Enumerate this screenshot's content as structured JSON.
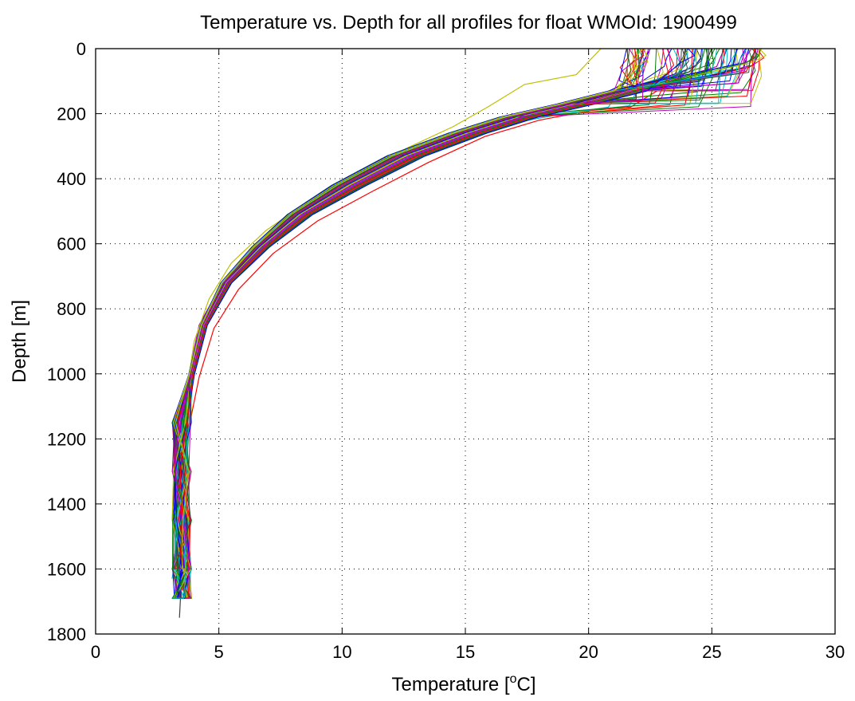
{
  "chart_data": {
    "type": "line",
    "title": "Temperature vs. Depth for all profiles for float WMOId: 1900499",
    "xlabel": "Temperature [",
    "xlabel_sup": "o",
    "xlabel_end": "C]",
    "ylabel": "Depth [m]",
    "xlim": [
      0,
      30
    ],
    "ylim": [
      0,
      1800
    ],
    "y_reversed": true,
    "grid": true,
    "grid_style": "dotted",
    "xticks": [
      "0",
      "5",
      "10",
      "15",
      "20",
      "25",
      "30"
    ],
    "yticks": [
      "0",
      "200",
      "400",
      "600",
      "800",
      "1000",
      "1200",
      "1400",
      "1600",
      "1800"
    ],
    "series_colors": [
      "#0000ff",
      "#008000",
      "#ff0000",
      "#00bfbf",
      "#bf00bf",
      "#bfbf00",
      "#404040"
    ],
    "note_series": "many profiles; representative envelope of profiles",
    "series": [
      {
        "color": "#0000ff",
        "x": [
          26.5,
          26.3,
          24.0,
          21.6,
          19.5,
          17.2,
          15.1,
          12.6,
          10.3,
          8.3,
          6.7,
          5.3,
          4.4,
          3.9,
          3.6,
          3.5,
          3.4,
          3.3,
          3.2
        ],
        "y": [
          0,
          60,
          100,
          130,
          170,
          210,
          260,
          330,
          420,
          510,
          610,
          720,
          850,
          1000,
          1150,
          1300,
          1450,
          1600,
          1690
        ]
      },
      {
        "color": "#008000",
        "x": [
          27.0,
          26.7,
          24.5,
          22.0,
          19.8,
          17.5,
          15.3,
          12.8,
          10.5,
          8.4,
          6.8,
          5.4,
          4.5,
          4.0,
          3.7,
          3.6,
          3.5,
          3.4,
          3.4
        ],
        "y": [
          0,
          50,
          90,
          125,
          165,
          205,
          255,
          325,
          415,
          505,
          605,
          715,
          845,
          995,
          1145,
          1295,
          1445,
          1595,
          1690
        ]
      },
      {
        "color": "#ff0000",
        "x": [
          26.8,
          26.4,
          23.2,
          21.7,
          20.1,
          18.0,
          15.8,
          13.5,
          11.2,
          9.0,
          7.2,
          5.8,
          4.8,
          4.2,
          3.8,
          3.6,
          3.5,
          3.4,
          3.4
        ],
        "y": [
          0,
          70,
          110,
          180,
          190,
          220,
          270,
          350,
          440,
          530,
          630,
          740,
          860,
          1010,
          1160,
          1310,
          1460,
          1610,
          1690
        ]
      },
      {
        "color": "#00bfbf",
        "x": [
          22.0,
          22.3,
          21.5,
          20.8,
          19.0,
          16.8,
          14.8,
          12.4,
          10.1,
          8.1,
          6.5,
          5.2,
          4.3,
          3.9,
          3.6,
          3.5,
          3.3,
          3.2,
          3.1
        ],
        "y": [
          0,
          40,
          100,
          180,
          200,
          230,
          270,
          340,
          425,
          510,
          610,
          715,
          840,
          990,
          1140,
          1290,
          1440,
          1590,
          1630
        ]
      },
      {
        "color": "#bf00bf",
        "x": [
          25.5,
          25.2,
          23.5,
          21.2,
          19.2,
          17.0,
          14.9,
          12.3,
          10.0,
          8.0,
          6.4,
          5.1,
          4.2,
          3.8,
          3.6,
          3.5,
          3.4,
          3.3,
          3.3
        ],
        "y": [
          0,
          55,
          95,
          135,
          175,
          215,
          265,
          335,
          425,
          515,
          615,
          725,
          850,
          1000,
          1150,
          1300,
          1450,
          1600,
          1690
        ]
      },
      {
        "color": "#bfbf00",
        "x": [
          20.5,
          19.5,
          17.4,
          15.9,
          14.5,
          12.8,
          10.6,
          8.6,
          6.9,
          5.5,
          4.6,
          4.0,
          3.7,
          3.6,
          3.5,
          3.4,
          3.3
        ],
        "y": [
          0,
          80,
          110,
          180,
          240,
          300,
          380,
          470,
          560,
          660,
          770,
          900,
          1050,
          1200,
          1350,
          1500,
          1650
        ]
      },
      {
        "color": "#404040",
        "x": [
          26.0,
          25.8,
          23.8,
          21.4,
          19.4,
          17.1,
          15.0,
          12.5,
          10.2,
          8.2,
          6.6,
          5.2,
          4.3,
          3.9,
          3.7,
          3.6,
          3.5,
          3.5,
          3.4
        ],
        "y": [
          0,
          65,
          105,
          140,
          180,
          220,
          270,
          340,
          430,
          520,
          620,
          730,
          855,
          1005,
          1155,
          1305,
          1455,
          1605,
          1750
        ]
      }
    ]
  }
}
